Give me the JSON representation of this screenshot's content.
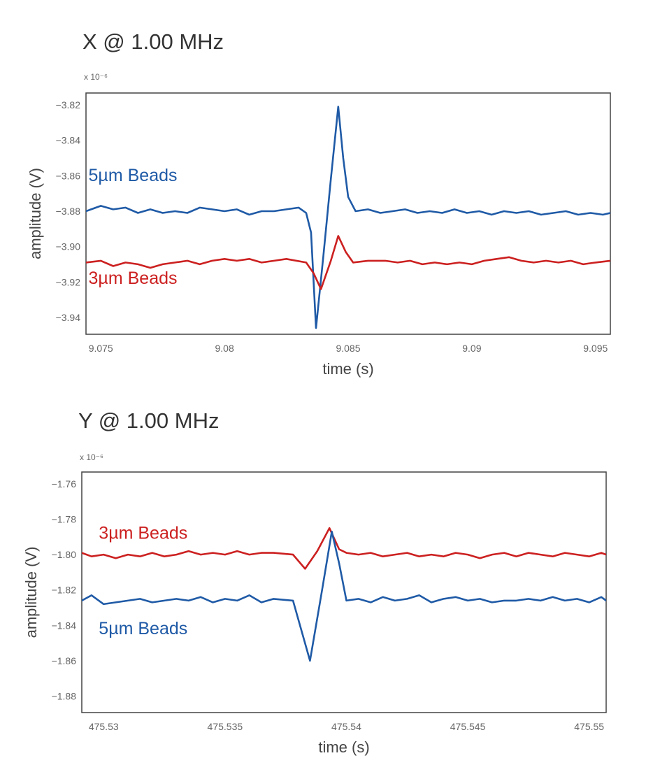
{
  "chart_data": [
    {
      "type": "line",
      "title": "X @ 1.00 MHz",
      "xlabel": "time (s)",
      "ylabel": "amplitude (V)",
      "y_multiplier": "x 10⁻⁶",
      "xlim": [
        9.0744,
        9.0956
      ],
      "ylim": [
        -3.9495,
        -3.8133
      ],
      "xticks": [
        9.075,
        9.08,
        9.085,
        9.09,
        9.095
      ],
      "xtick_labels": [
        "9.075",
        "9.08",
        "9.085",
        "9.09",
        "9.095"
      ],
      "yticks": [
        -3.82,
        -3.84,
        -3.86,
        -3.88,
        -3.9,
        -3.92,
        -3.94
      ],
      "ytick_labels": [
        "−3.82",
        "−3.84",
        "−3.86",
        "−3.88",
        "−3.90",
        "−3.92",
        "−3.94"
      ],
      "grid": false,
      "series": [
        {
          "name": "5µm Beads",
          "color": "#1f5aa6",
          "label_x": 9.0745,
          "label_y": -3.863,
          "points": [
            [
              9.0744,
              -3.88
            ],
            [
              9.075,
              -3.877
            ],
            [
              9.0755,
              -3.879
            ],
            [
              9.076,
              -3.878
            ],
            [
              9.0765,
              -3.881
            ],
            [
              9.077,
              -3.879
            ],
            [
              9.0775,
              -3.881
            ],
            [
              9.078,
              -3.88
            ],
            [
              9.0785,
              -3.881
            ],
            [
              9.079,
              -3.878
            ],
            [
              9.0795,
              -3.879
            ],
            [
              9.08,
              -3.88
            ],
            [
              9.0805,
              -3.879
            ],
            [
              9.081,
              -3.882
            ],
            [
              9.0815,
              -3.88
            ],
            [
              9.082,
              -3.88
            ],
            [
              9.0825,
              -3.879
            ],
            [
              9.083,
              -3.878
            ],
            [
              9.0833,
              -3.881
            ],
            [
              9.0835,
              -3.892
            ],
            [
              9.0837,
              -3.946
            ],
            [
              9.084,
              -3.905
            ],
            [
              9.0843,
              -3.862
            ],
            [
              9.0846,
              -3.821
            ],
            [
              9.0848,
              -3.85
            ],
            [
              9.085,
              -3.872
            ],
            [
              9.0853,
              -3.88
            ],
            [
              9.0858,
              -3.879
            ],
            [
              9.0863,
              -3.881
            ],
            [
              9.0868,
              -3.88
            ],
            [
              9.0873,
              -3.879
            ],
            [
              9.0878,
              -3.881
            ],
            [
              9.0883,
              -3.88
            ],
            [
              9.0888,
              -3.881
            ],
            [
              9.0893,
              -3.879
            ],
            [
              9.0898,
              -3.881
            ],
            [
              9.0903,
              -3.88
            ],
            [
              9.0908,
              -3.882
            ],
            [
              9.0913,
              -3.88
            ],
            [
              9.0918,
              -3.881
            ],
            [
              9.0923,
              -3.88
            ],
            [
              9.0928,
              -3.882
            ],
            [
              9.0933,
              -3.881
            ],
            [
              9.0938,
              -3.88
            ],
            [
              9.0943,
              -3.882
            ],
            [
              9.0948,
              -3.881
            ],
            [
              9.0953,
              -3.882
            ],
            [
              9.0956,
              -3.881
            ]
          ]
        },
        {
          "name": "3µm Beads",
          "color": "#cc2020",
          "label_x": 9.0745,
          "label_y": -3.921,
          "points": [
            [
              9.0744,
              -3.909
            ],
            [
              9.075,
              -3.908
            ],
            [
              9.0755,
              -3.911
            ],
            [
              9.076,
              -3.909
            ],
            [
              9.0765,
              -3.91
            ],
            [
              9.077,
              -3.912
            ],
            [
              9.0775,
              -3.91
            ],
            [
              9.078,
              -3.909
            ],
            [
              9.0785,
              -3.908
            ],
            [
              9.079,
              -3.91
            ],
            [
              9.0795,
              -3.908
            ],
            [
              9.08,
              -3.907
            ],
            [
              9.0805,
              -3.908
            ],
            [
              9.081,
              -3.907
            ],
            [
              9.0815,
              -3.909
            ],
            [
              9.082,
              -3.908
            ],
            [
              9.0825,
              -3.907
            ],
            [
              9.0833,
              -3.909
            ],
            [
              9.0836,
              -3.915
            ],
            [
              9.0839,
              -3.924
            ],
            [
              9.0843,
              -3.908
            ],
            [
              9.0846,
              -3.894
            ],
            [
              9.0849,
              -3.903
            ],
            [
              9.0852,
              -3.909
            ],
            [
              9.0858,
              -3.908
            ],
            [
              9.0865,
              -3.908
            ],
            [
              9.087,
              -3.909
            ],
            [
              9.0875,
              -3.908
            ],
            [
              9.088,
              -3.91
            ],
            [
              9.0885,
              -3.909
            ],
            [
              9.089,
              -3.91
            ],
            [
              9.0895,
              -3.909
            ],
            [
              9.09,
              -3.91
            ],
            [
              9.0905,
              -3.908
            ],
            [
              9.091,
              -3.907
            ],
            [
              9.0915,
              -3.906
            ],
            [
              9.092,
              -3.908
            ],
            [
              9.0925,
              -3.909
            ],
            [
              9.093,
              -3.908
            ],
            [
              9.0935,
              -3.909
            ],
            [
              9.094,
              -3.908
            ],
            [
              9.0945,
              -3.91
            ],
            [
              9.095,
              -3.909
            ],
            [
              9.0956,
              -3.908
            ]
          ]
        }
      ]
    },
    {
      "type": "line",
      "title": "Y @ 1.00 MHz",
      "xlabel": "time (s)",
      "ylabel": "amplitude (V)",
      "y_multiplier": "x 10⁻⁶",
      "xlim": [
        475.5291,
        475.5507
      ],
      "ylim": [
        -1.8893,
        -1.7533
      ],
      "xticks": [
        475.53,
        475.535,
        475.54,
        475.545,
        475.55
      ],
      "xtick_labels": [
        "475.53",
        "475.535",
        "475.54",
        "475.545",
        "475.55"
      ],
      "yticks": [
        -1.76,
        -1.78,
        -1.8,
        -1.82,
        -1.84,
        -1.86,
        -1.88
      ],
      "ytick_labels": [
        "−1.76",
        "−1.78",
        "−1.80",
        "−1.82",
        "−1.84",
        "−1.86",
        "−1.88"
      ],
      "grid": false,
      "series": [
        {
          "name": "3µm Beads",
          "color": "#cc2020",
          "label_x": 475.5298,
          "label_y": -1.791,
          "points": [
            [
              475.5291,
              -1.799
            ],
            [
              475.5295,
              -1.801
            ],
            [
              475.53,
              -1.8
            ],
            [
              475.5305,
              -1.802
            ],
            [
              475.531,
              -1.8
            ],
            [
              475.5315,
              -1.801
            ],
            [
              475.532,
              -1.799
            ],
            [
              475.5325,
              -1.801
            ],
            [
              475.533,
              -1.8
            ],
            [
              475.5335,
              -1.798
            ],
            [
              475.534,
              -1.8
            ],
            [
              475.5345,
              -1.799
            ],
            [
              475.535,
              -1.8
            ],
            [
              475.5355,
              -1.798
            ],
            [
              475.536,
              -1.8
            ],
            [
              475.5365,
              -1.799
            ],
            [
              475.537,
              -1.799
            ],
            [
              475.5378,
              -1.8
            ],
            [
              475.5383,
              -1.808
            ],
            [
              475.5388,
              -1.798
            ],
            [
              475.5393,
              -1.785
            ],
            [
              475.5397,
              -1.797
            ],
            [
              475.54,
              -1.799
            ],
            [
              475.5405,
              -1.8
            ],
            [
              475.541,
              -1.799
            ],
            [
              475.5415,
              -1.801
            ],
            [
              475.542,
              -1.8
            ],
            [
              475.5425,
              -1.799
            ],
            [
              475.543,
              -1.801
            ],
            [
              475.5435,
              -1.8
            ],
            [
              475.544,
              -1.801
            ],
            [
              475.5445,
              -1.799
            ],
            [
              475.545,
              -1.8
            ],
            [
              475.5455,
              -1.802
            ],
            [
              475.546,
              -1.8
            ],
            [
              475.5465,
              -1.799
            ],
            [
              475.547,
              -1.801
            ],
            [
              475.5475,
              -1.799
            ],
            [
              475.548,
              -1.8
            ],
            [
              475.5485,
              -1.801
            ],
            [
              475.549,
              -1.799
            ],
            [
              475.5495,
              -1.8
            ],
            [
              475.55,
              -1.801
            ],
            [
              475.5505,
              -1.799
            ],
            [
              475.5507,
              -1.8
            ]
          ]
        },
        {
          "name": "5µm Beads",
          "color": "#1f5aa6",
          "label_x": 475.5298,
          "label_y": -1.845,
          "points": [
            [
              475.5291,
              -1.826
            ],
            [
              475.5295,
              -1.823
            ],
            [
              475.53,
              -1.828
            ],
            [
              475.5305,
              -1.827
            ],
            [
              475.531,
              -1.826
            ],
            [
              475.5315,
              -1.825
            ],
            [
              475.532,
              -1.827
            ],
            [
              475.5325,
              -1.826
            ],
            [
              475.533,
              -1.825
            ],
            [
              475.5335,
              -1.826
            ],
            [
              475.534,
              -1.824
            ],
            [
              475.5345,
              -1.827
            ],
            [
              475.535,
              -1.825
            ],
            [
              475.5355,
              -1.826
            ],
            [
              475.536,
              -1.823
            ],
            [
              475.5365,
              -1.827
            ],
            [
              475.537,
              -1.825
            ],
            [
              475.5378,
              -1.826
            ],
            [
              475.5385,
              -1.86
            ],
            [
              475.539,
              -1.82
            ],
            [
              475.5394,
              -1.787
            ],
            [
              475.5397,
              -1.805
            ],
            [
              475.54,
              -1.826
            ],
            [
              475.5405,
              -1.825
            ],
            [
              475.541,
              -1.827
            ],
            [
              475.5415,
              -1.824
            ],
            [
              475.542,
              -1.826
            ],
            [
              475.5425,
              -1.825
            ],
            [
              475.543,
              -1.823
            ],
            [
              475.5435,
              -1.827
            ],
            [
              475.544,
              -1.825
            ],
            [
              475.5445,
              -1.824
            ],
            [
              475.545,
              -1.826
            ],
            [
              475.5455,
              -1.825
            ],
            [
              475.546,
              -1.827
            ],
            [
              475.5465,
              -1.826
            ],
            [
              475.547,
              -1.826
            ],
            [
              475.5475,
              -1.825
            ],
            [
              475.548,
              -1.826
            ],
            [
              475.5485,
              -1.824
            ],
            [
              475.549,
              -1.826
            ],
            [
              475.5495,
              -1.825
            ],
            [
              475.55,
              -1.827
            ],
            [
              475.5505,
              -1.824
            ],
            [
              475.5507,
              -1.826
            ]
          ]
        }
      ]
    }
  ]
}
